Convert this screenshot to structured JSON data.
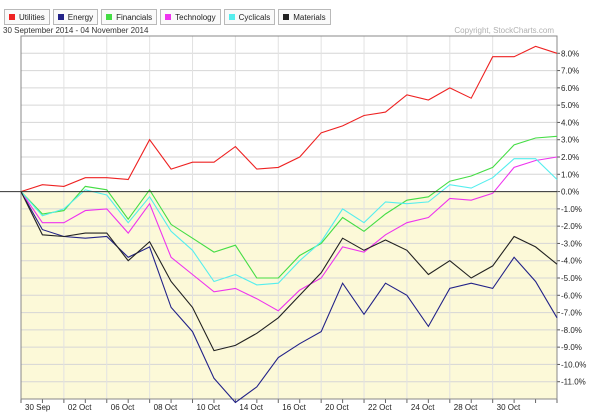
{
  "header": {
    "date_range": "30 September 2014 - 04 November 2014",
    "copyright": "Copyright, StockCharts.com"
  },
  "chart_data": {
    "type": "line",
    "grid": true,
    "legend_position": "top-left",
    "ylim": [
      -12,
      9
    ],
    "y_ticks": [
      "8.0%",
      "7.0%",
      "6.0%",
      "5.0%",
      "4.0%",
      "3.0%",
      "2.0%",
      "1.0%",
      "0.0%",
      "-1.0%",
      "-2.0%",
      "-3.0%",
      "-4.0%",
      "-5.0%",
      "-6.0%",
      "-7.0%",
      "-8.0%",
      "-9.0%",
      "-10.0%",
      "-11.0%"
    ],
    "x_tick_labels": [
      "30 Sep",
      "02 Oct",
      "06 Oct",
      "08 Oct",
      "10 Oct",
      "14 Oct",
      "16 Oct",
      "20 Oct",
      "22 Oct",
      "24 Oct",
      "28 Oct",
      "30 Oct"
    ],
    "series": [
      {
        "name": "Utilities",
        "color": "#ee2222",
        "values": [
          0.0,
          0.4,
          0.3,
          0.8,
          0.8,
          0.7,
          3.0,
          1.3,
          1.7,
          1.7,
          2.6,
          1.3,
          1.4,
          2.0,
          3.4,
          3.8,
          4.4,
          4.6,
          5.6,
          5.3,
          6.0,
          5.4,
          7.8,
          7.8,
          8.4,
          8.0
        ]
      },
      {
        "name": "Energy",
        "color": "#222288",
        "values": [
          0.0,
          -2.2,
          -2.6,
          -2.7,
          -2.6,
          -3.8,
          -3.2,
          -6.7,
          -8.1,
          -10.8,
          -12.2,
          -11.3,
          -9.6,
          -8.8,
          -8.1,
          -5.3,
          -7.1,
          -5.3,
          -6.0,
          -7.8,
          -5.6,
          -5.3,
          -5.6,
          -3.8,
          -5.2,
          -7.3
        ]
      },
      {
        "name": "Financials",
        "color": "#44dd44",
        "values": [
          0.0,
          -1.3,
          -1.1,
          0.3,
          0.1,
          -1.6,
          0.1,
          -1.9,
          -2.7,
          -3.5,
          -3.1,
          -5.0,
          -5.0,
          -3.7,
          -3.0,
          -1.5,
          -2.3,
          -1.3,
          -0.5,
          -0.3,
          0.6,
          0.9,
          1.4,
          2.7,
          3.1,
          3.2
        ]
      },
      {
        "name": "Technology",
        "color": "#ee33ee",
        "values": [
          0.0,
          -1.8,
          -1.8,
          -1.1,
          -1.0,
          -2.4,
          -0.7,
          -3.8,
          -4.8,
          -5.8,
          -5.6,
          -6.2,
          -6.9,
          -5.7,
          -5.0,
          -3.2,
          -3.5,
          -2.5,
          -1.8,
          -1.5,
          -0.4,
          -0.5,
          -0.1,
          1.4,
          1.8,
          2.0
        ]
      },
      {
        "name": "Cyclicals",
        "color": "#55eeee",
        "values": [
          0.0,
          -1.4,
          -1.0,
          0.1,
          -0.2,
          -1.8,
          -0.3,
          -2.3,
          -3.4,
          -5.2,
          -4.8,
          -5.4,
          -5.3,
          -4.0,
          -2.9,
          -1.0,
          -1.8,
          -0.6,
          -0.7,
          -0.6,
          0.4,
          0.2,
          0.8,
          1.9,
          1.9,
          0.7
        ]
      },
      {
        "name": "Materials",
        "color": "#222222",
        "values": [
          0.0,
          -2.5,
          -2.6,
          -2.4,
          -2.4,
          -4.0,
          -2.9,
          -5.2,
          -6.7,
          -9.2,
          -8.9,
          -8.2,
          -7.3,
          -6.0,
          -4.7,
          -2.7,
          -3.4,
          -2.8,
          -3.4,
          -4.8,
          -4.0,
          -5.0,
          -4.3,
          -2.6,
          -3.2,
          -4.2
        ]
      }
    ]
  }
}
